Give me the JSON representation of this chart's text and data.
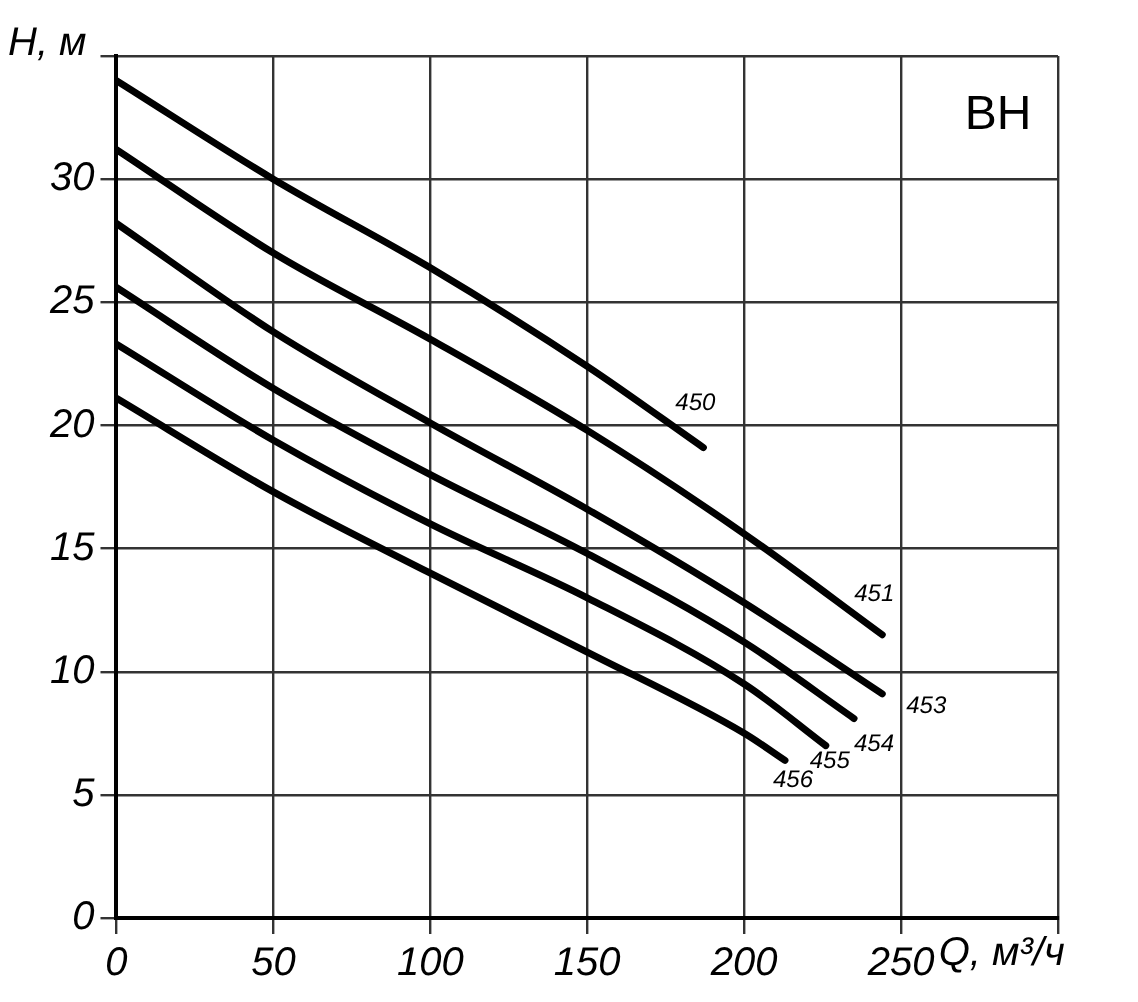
{
  "chart_data": {
    "type": "line",
    "xlabel": "Q, м³/ч",
    "ylabel": "H, м",
    "annotations": [
      "ВН"
    ],
    "xlim": [
      0,
      300
    ],
    "xticks": [
      0,
      50,
      100,
      150,
      200,
      250,
      {
        "value": 300,
        "label": null
      }
    ],
    "ylim": [
      0,
      35
    ],
    "yticks": [
      0,
      5,
      10,
      15,
      20,
      25,
      30,
      {
        "value": 35,
        "label": null
      }
    ],
    "grid": true,
    "legend": false,
    "marker": "none",
    "line_style": "solid",
    "series": [
      {
        "name": "450",
        "color": "#000000",
        "x": [
          0,
          50,
          100,
          150,
          187
        ],
        "values": [
          34,
          30,
          26.4,
          22.4,
          19.1
        ]
      },
      {
        "name": "451",
        "color": "#000000",
        "x": [
          0,
          50,
          100,
          150,
          200,
          244
        ],
        "values": [
          31.2,
          27,
          23.5,
          19.8,
          15.6,
          11.5
        ]
      },
      {
        "name": "453",
        "color": "#000000",
        "x": [
          0,
          50,
          100,
          150,
          200,
          244
        ],
        "values": [
          28.2,
          23.8,
          20.1,
          16.6,
          12.8,
          9.1
        ]
      },
      {
        "name": "454",
        "color": "#000000",
        "x": [
          0,
          50,
          100,
          150,
          200,
          235
        ],
        "values": [
          25.6,
          21.5,
          18,
          14.8,
          11.2,
          8.1
        ]
      },
      {
        "name": "455",
        "color": "#000000",
        "x": [
          0,
          50,
          100,
          150,
          200,
          226
        ],
        "values": [
          23.3,
          19.4,
          16,
          13,
          9.5,
          7
        ]
      },
      {
        "name": "456",
        "color": "#000000",
        "x": [
          0,
          50,
          100,
          150,
          200,
          213
        ],
        "values": [
          21.1,
          17.3,
          14,
          10.8,
          7.5,
          6.4
        ]
      }
    ]
  }
}
